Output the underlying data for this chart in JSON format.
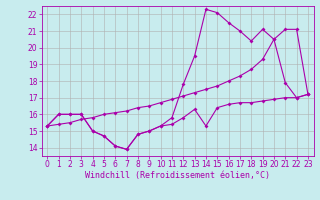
{
  "background_color": "#c8ecee",
  "grid_color": "#b0b0b0",
  "line_color": "#aa00aa",
  "marker": "D",
  "markersize": 2,
  "linewidth": 0.8,
  "xlabel": "Windchill (Refroidissement éolien,°C)",
  "xlabel_fontsize": 6,
  "xlim": [
    -0.5,
    23.5
  ],
  "ylim": [
    13.5,
    22.5
  ],
  "yticks": [
    14,
    15,
    16,
    17,
    18,
    19,
    20,
    21,
    22
  ],
  "xticks": [
    0,
    1,
    2,
    3,
    4,
    5,
    6,
    7,
    8,
    9,
    10,
    11,
    12,
    13,
    14,
    15,
    16,
    17,
    18,
    19,
    20,
    21,
    22,
    23
  ],
  "tick_fontsize": 5.5,
  "series1_x": [
    0,
    1,
    2,
    3,
    4,
    5,
    6,
    7,
    8,
    9,
    10,
    11,
    12,
    13,
    14,
    15,
    16,
    17,
    18,
    19,
    20,
    21,
    22,
    23
  ],
  "series1_y": [
    15.3,
    16.0,
    16.0,
    16.0,
    15.0,
    14.7,
    14.1,
    13.9,
    14.8,
    15.0,
    15.3,
    15.4,
    15.8,
    16.3,
    15.3,
    16.4,
    16.6,
    16.7,
    16.7,
    16.8,
    16.9,
    17.0,
    17.0,
    17.2
  ],
  "series2_x": [
    0,
    1,
    2,
    3,
    4,
    5,
    6,
    7,
    8,
    9,
    10,
    11,
    12,
    13,
    14,
    15,
    16,
    17,
    18,
    19,
    20,
    21,
    22,
    23
  ],
  "series2_y": [
    15.3,
    16.0,
    16.0,
    16.0,
    15.0,
    14.7,
    14.1,
    13.9,
    14.8,
    15.0,
    15.3,
    15.8,
    17.8,
    19.5,
    22.3,
    22.1,
    21.5,
    21.0,
    20.4,
    21.1,
    20.5,
    17.9,
    17.0,
    17.2
  ],
  "series3_x": [
    0,
    1,
    2,
    3,
    4,
    5,
    6,
    7,
    8,
    9,
    10,
    11,
    12,
    13,
    14,
    15,
    16,
    17,
    18,
    19,
    20,
    21,
    22,
    23
  ],
  "series3_y": [
    15.3,
    15.4,
    15.5,
    15.7,
    15.8,
    16.0,
    16.1,
    16.2,
    16.4,
    16.5,
    16.7,
    16.9,
    17.1,
    17.3,
    17.5,
    17.7,
    18.0,
    18.3,
    18.7,
    19.3,
    20.5,
    21.1,
    21.1,
    17.2
  ]
}
